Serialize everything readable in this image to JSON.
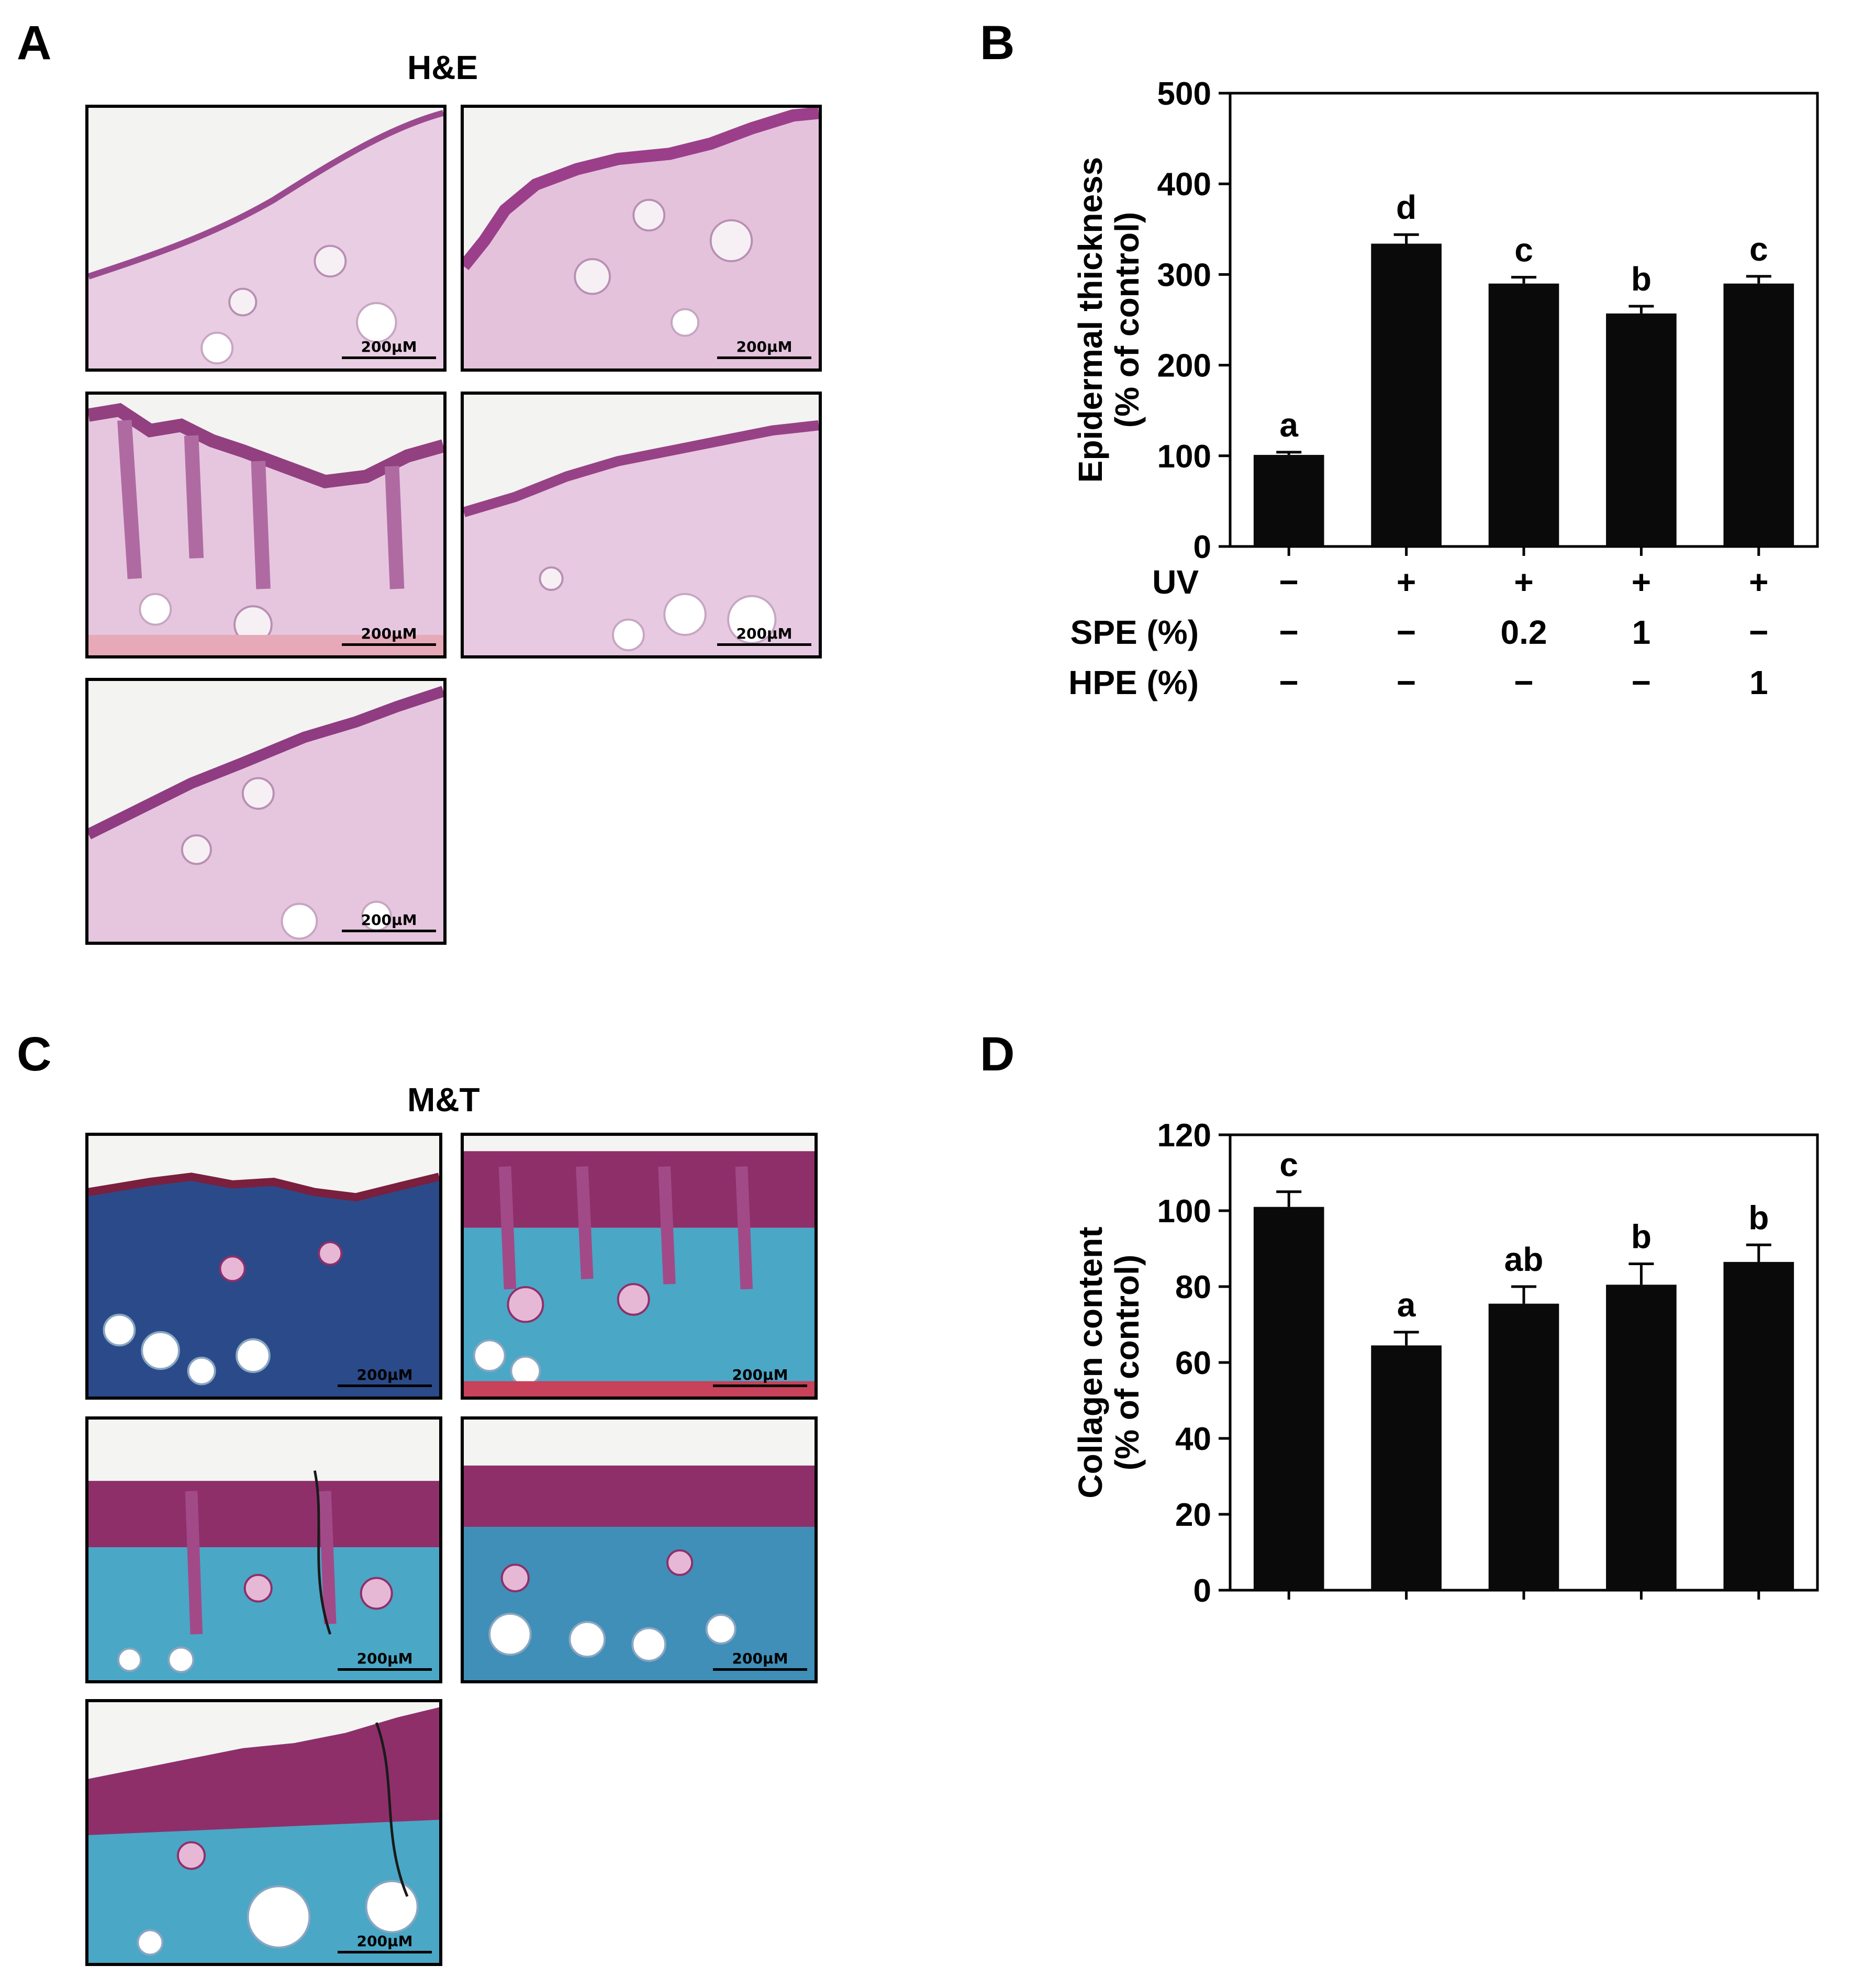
{
  "panels": {
    "a_letter": "A",
    "b_letter": "B",
    "c_letter": "C",
    "d_letter": "D",
    "he_title": "H&E",
    "mt_title": "M&T",
    "scale_label": "200μM"
  },
  "chart_data": [
    {
      "type": "bar",
      "panel": "B",
      "title": "",
      "xlabel": "",
      "ylabel": [
        "Epidermal thickness",
        "(% of control)"
      ],
      "ylim": [
        0,
        500
      ],
      "yticks": [
        0,
        100,
        200,
        300,
        400,
        500
      ],
      "values": [
        101,
        334,
        290,
        257,
        290
      ],
      "errors": [
        3,
        10,
        7,
        8,
        8
      ],
      "significance": [
        "a",
        "d",
        "c",
        "b",
        "c"
      ],
      "grid": false,
      "treatment_rows": [
        {
          "label": "UV",
          "values": [
            "−",
            "+",
            "+",
            "+",
            "+"
          ]
        },
        {
          "label": "SPE (%)",
          "values": [
            "−",
            "−",
            "0.2",
            "1",
            "−"
          ]
        },
        {
          "label": "HPE (%)",
          "values": [
            "−",
            "−",
            "−",
            "−",
            "1"
          ]
        }
      ],
      "bar_color": "#0a0a0a"
    },
    {
      "type": "bar",
      "panel": "D",
      "title": "",
      "xlabel": "",
      "ylabel": [
        "Collagen content",
        "(% of control)"
      ],
      "ylim": [
        0,
        120
      ],
      "yticks": [
        0,
        20,
        40,
        60,
        80,
        100,
        120
      ],
      "values": [
        101,
        64.5,
        75.5,
        80.5,
        86.5
      ],
      "errors": [
        4,
        3.5,
        4.5,
        5.5,
        4.5
      ],
      "significance": [
        "c",
        "a",
        "ab",
        "b",
        "b"
      ],
      "grid": false,
      "bar_color": "#0a0a0a"
    }
  ],
  "micrographs": {
    "he_tissue": "#e8cde3",
    "he_epidermis": "#9b4a8f",
    "he_background": "#f3f3f1",
    "mt_collagen": "#4aa7c6",
    "mt_dense_collagen": "#2b4a8a",
    "mt_epidermis": "#8e2f6a",
    "mt_background": "#f4f4f2"
  }
}
